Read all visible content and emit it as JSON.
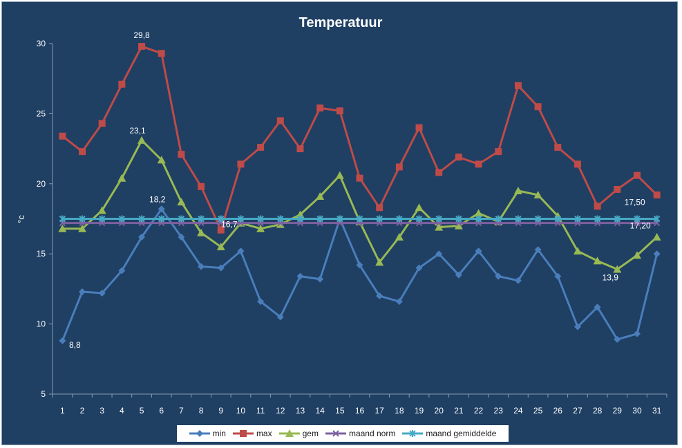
{
  "chart_data": {
    "type": "line",
    "title": "Temperatuur",
    "xlabel": "",
    "ylabel": "°c",
    "ylim": [
      5,
      30
    ],
    "yticks": [
      5,
      10,
      15,
      20,
      25,
      30
    ],
    "grid": false,
    "legend_position": "bottom",
    "x": [
      1,
      2,
      3,
      4,
      5,
      6,
      7,
      8,
      9,
      10,
      11,
      12,
      13,
      14,
      15,
      16,
      17,
      18,
      19,
      20,
      21,
      22,
      23,
      24,
      25,
      26,
      27,
      28,
      29,
      30,
      31
    ],
    "series": [
      {
        "name": "min",
        "color": "#4a7ebb",
        "marker": "diamond",
        "values": [
          8.8,
          12.3,
          12.2,
          13.8,
          16.2,
          18.2,
          16.2,
          14.1,
          14.0,
          15.2,
          11.6,
          10.5,
          13.4,
          13.2,
          17.5,
          14.2,
          12.0,
          11.6,
          14.0,
          15.0,
          13.5,
          15.2,
          13.4,
          13.1,
          15.3,
          13.4,
          9.8,
          11.2,
          8.9,
          9.3,
          15.0
        ]
      },
      {
        "name": "max",
        "color": "#be4b48",
        "marker": "square",
        "values": [
          23.4,
          22.3,
          24.3,
          27.1,
          29.8,
          29.3,
          22.1,
          19.8,
          16.7,
          21.4,
          22.6,
          24.5,
          22.5,
          25.4,
          25.2,
          20.4,
          18.3,
          21.2,
          24.0,
          20.8,
          21.9,
          21.4,
          22.3,
          27.0,
          25.5,
          22.6,
          21.4,
          18.4,
          19.6,
          20.6,
          19.2
        ]
      },
      {
        "name": "gem",
        "color": "#98b954",
        "marker": "triangle",
        "values": [
          16.8,
          16.8,
          18.1,
          20.4,
          23.1,
          21.7,
          18.7,
          16.5,
          15.5,
          17.2,
          16.8,
          17.1,
          17.8,
          19.1,
          20.6,
          17.3,
          14.4,
          16.2,
          18.3,
          16.9,
          17.0,
          17.9,
          17.3,
          19.5,
          19.2,
          17.7,
          15.2,
          14.5,
          13.9,
          14.9,
          16.2
        ]
      },
      {
        "name": "maand norm",
        "color": "#7d60a0",
        "marker": "x",
        "values": [
          17.2,
          17.2,
          17.2,
          17.2,
          17.2,
          17.2,
          17.2,
          17.2,
          17.2,
          17.2,
          17.2,
          17.2,
          17.2,
          17.2,
          17.2,
          17.2,
          17.2,
          17.2,
          17.2,
          17.2,
          17.2,
          17.2,
          17.2,
          17.2,
          17.2,
          17.2,
          17.2,
          17.2,
          17.2,
          17.2,
          17.2
        ]
      },
      {
        "name": "maand gemiddelde",
        "color": "#46aac5",
        "marker": "star",
        "values": [
          17.5,
          17.5,
          17.5,
          17.5,
          17.5,
          17.5,
          17.5,
          17.5,
          17.5,
          17.5,
          17.5,
          17.5,
          17.5,
          17.5,
          17.5,
          17.5,
          17.5,
          17.5,
          17.5,
          17.5,
          17.5,
          17.5,
          17.5,
          17.5,
          17.5,
          17.5,
          17.5,
          17.5,
          17.5,
          17.5,
          17.5
        ]
      }
    ],
    "annotations": [
      {
        "series": "max",
        "x": 5,
        "text": "29,8"
      },
      {
        "series": "gem",
        "x": 5,
        "text": "23,1"
      },
      {
        "series": "min",
        "x": 6,
        "text": "18,2"
      },
      {
        "series": "max",
        "x": 9,
        "text": "16,7"
      },
      {
        "series": "min",
        "x": 1,
        "text": "8,8"
      },
      {
        "series": "gem",
        "x": 29,
        "text": "13,9"
      },
      {
        "series": "maand gemiddelde",
        "x": 31,
        "text": "17,50"
      },
      {
        "series": "maand norm",
        "x": 31,
        "text": "17,20"
      }
    ]
  }
}
